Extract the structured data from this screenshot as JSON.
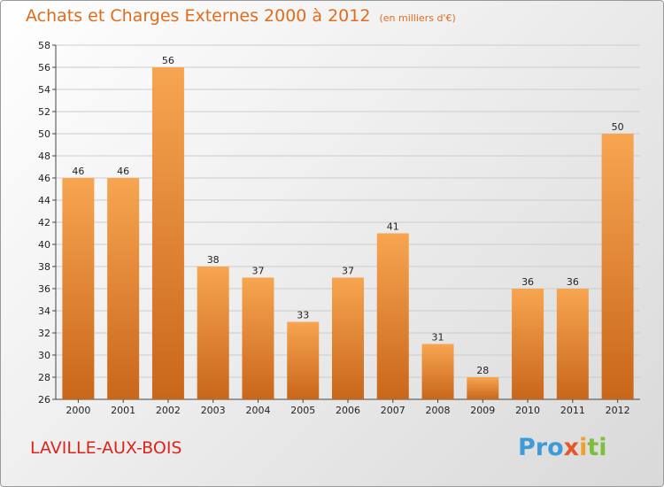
{
  "header": {
    "title": "Achats et Charges Externes 2000 à 2012",
    "subtitle": "(en milliers d'€)"
  },
  "footer": {
    "place": "LAVILLE-AUX-BOIS",
    "logo": {
      "p1": "Pro",
      "p2": "x",
      "p3": "i",
      "p4": "ti"
    }
  },
  "colors": {
    "bar_top": "#f7a551",
    "bar_bottom": "#c9661a",
    "title": "#e06c1c",
    "place": "#d9261c",
    "grid": "#cccccc"
  },
  "chart_data": {
    "type": "bar",
    "title": "Achats et Charges Externes 2000 à 2012",
    "subtitle": "(en milliers d'€)",
    "categories": [
      "2000",
      "2001",
      "2002",
      "2003",
      "2004",
      "2005",
      "2006",
      "2007",
      "2008",
      "2009",
      "2010",
      "2011",
      "2012"
    ],
    "values": [
      46,
      46,
      56,
      38,
      37,
      33,
      37,
      41,
      31,
      28,
      36,
      36,
      50
    ],
    "data_labels": [
      "46",
      "46",
      "56",
      "38",
      "37",
      "33",
      "37",
      "41",
      "31",
      "28",
      "36",
      "36",
      "50"
    ],
    "yticks": [
      "26",
      "28",
      "30",
      "32",
      "34",
      "36",
      "38",
      "40",
      "42",
      "44",
      "46",
      "48",
      "50",
      "52",
      "54",
      "56",
      "58"
    ],
    "ylim": [
      26,
      58
    ],
    "grid": true,
    "legend": "none"
  }
}
